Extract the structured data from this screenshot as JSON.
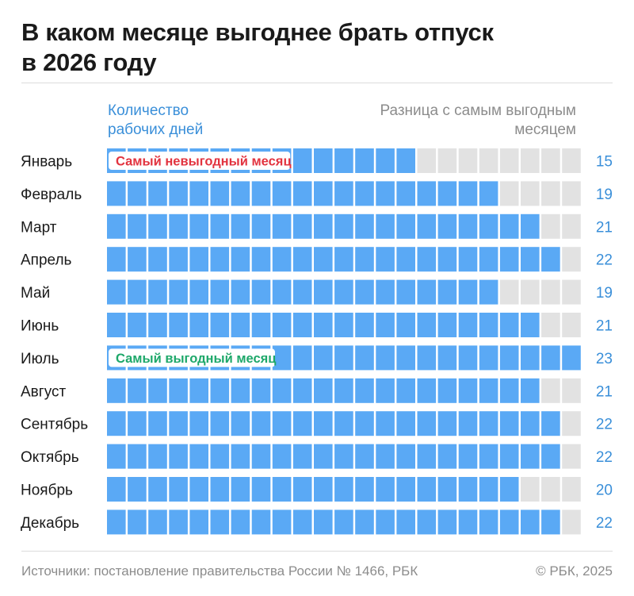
{
  "title": {
    "line1": "В каком месяце выгоднее брать отпуск",
    "line2": "в 2026 году"
  },
  "legend": {
    "left_line1": "Количество",
    "left_line2": "рабочих дней",
    "right_line1": "Разница с самым выгодным",
    "right_line2": "месяцем"
  },
  "colors": {
    "filled": "#5aa9f5",
    "empty": "#e2e2e2",
    "value_text": "#3a8fd9",
    "worst_label": "#e2333f",
    "best_label": "#1ea86a"
  },
  "chart_data": {
    "type": "bar",
    "categories": [
      "Январь",
      "Февраль",
      "Март",
      "Апрель",
      "Май",
      "Июнь",
      "Июль",
      "Август",
      "Сентябрь",
      "Октябрь",
      "Ноябрь",
      "Декабрь"
    ],
    "values": [
      15,
      19,
      21,
      22,
      19,
      21,
      23,
      21,
      22,
      22,
      20,
      22
    ],
    "max_cells": 23,
    "annotations": [
      {
        "category": "Январь",
        "text": "Самый невыгодный месяц",
        "kind": "worst"
      },
      {
        "category": "Июль",
        "text": "Самый выгодный месяц",
        "kind": "best"
      }
    ]
  },
  "footer": {
    "source": "Источники: постановление правительства России № 1466, РБК",
    "copyright": "© РБК, 2025"
  }
}
